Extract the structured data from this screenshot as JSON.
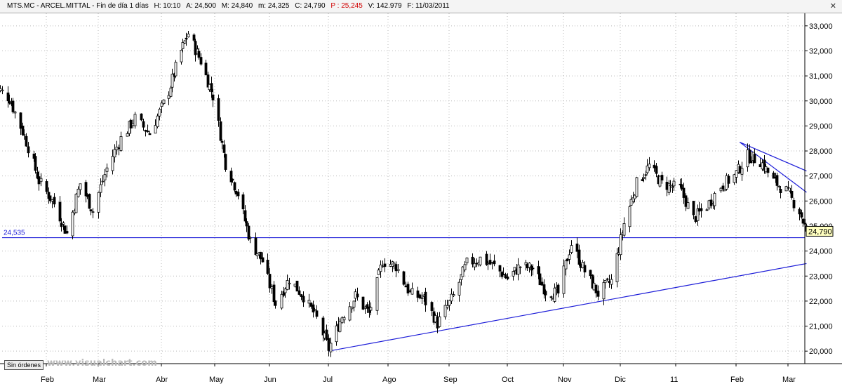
{
  "header": {
    "ticker": "MTS.MC - ARCEL.MITTAL - Fin de día 1 días",
    "high": "H: 10:10",
    "ask": "A: 24,500",
    "max": "M: 24,840",
    "min": "m: 24,325",
    "close": "C: 24,790",
    "price": "P : 25,245",
    "volume": "V: 142.979",
    "date": "F: 11/03/2011",
    "close_icon": "close-icon"
  },
  "colors": {
    "candle": "#000000",
    "trendline": "#1c1cd8",
    "grid": "#b8b8b8",
    "background": "#ffffff",
    "last_price_box": "#ffffc0"
  },
  "chart_data": {
    "type": "candlestick",
    "ylim": [
      19500,
      33500
    ],
    "y_ticks": [
      "20,000",
      "21,000",
      "22,000",
      "23,000",
      "24,000",
      "25,000",
      "26,000",
      "27,000",
      "28,000",
      "29,000",
      "30,000",
      "31,000",
      "32,000",
      "33,000"
    ],
    "x_tick_labels": [
      "Feb",
      "Mar",
      "Abr",
      "May",
      "Jun",
      "Jul",
      "Ago",
      "Sep",
      "Oct",
      "Nov",
      "Dic",
      "11",
      "Feb",
      "Mar"
    ],
    "x_tick_dates": [
      "2010-02-01",
      "2010-03-01",
      "2010-04-01",
      "2010-05-01",
      "2010-06-01",
      "2010-07-01",
      "2010-08-01",
      "2010-09-01",
      "2010-10-01",
      "2010-11-01",
      "2010-12-01",
      "2011-01-01",
      "2011-02-01",
      "2011-03-01"
    ],
    "grid": true,
    "support_level": {
      "value": 24535,
      "label": "24,535"
    },
    "last_price": {
      "value": 24790,
      "label": "24,790"
    },
    "trendlines": [
      {
        "from": [
          "2010-07-01",
          20000
        ],
        "to": [
          "2011-03-11",
          23500
        ]
      },
      {
        "from": [
          "2011-02-03",
          28350
        ],
        "to": [
          "2011-03-11",
          27200
        ]
      },
      {
        "from": [
          "2011-02-03",
          28350
        ],
        "to": [
          "2011-03-11",
          26350
        ]
      }
    ],
    "price_path": [
      [
        "2010-01-04",
        30600
      ],
      [
        "2010-01-12",
        30100
      ],
      [
        "2010-01-20",
        28600
      ],
      [
        "2010-01-28",
        26800
      ],
      [
        "2010-02-05",
        25900
      ],
      [
        "2010-02-12",
        24700
      ],
      [
        "2010-02-19",
        26700
      ],
      [
        "2010-02-26",
        25600
      ],
      [
        "2010-03-05",
        27300
      ],
      [
        "2010-03-12",
        28500
      ],
      [
        "2010-03-19",
        29300
      ],
      [
        "2010-03-26",
        28700
      ],
      [
        "2010-04-05",
        30400
      ],
      [
        "2010-04-12",
        32000
      ],
      [
        "2010-04-16",
        32700
      ],
      [
        "2010-04-23",
        31600
      ],
      [
        "2010-04-30",
        30200
      ],
      [
        "2010-05-07",
        27500
      ],
      [
        "2010-05-14",
        26300
      ],
      [
        "2010-05-21",
        24400
      ],
      [
        "2010-05-28",
        23600
      ],
      [
        "2010-06-04",
        21900
      ],
      [
        "2010-06-11",
        22900
      ],
      [
        "2010-06-18",
        22200
      ],
      [
        "2010-06-25",
        21300
      ],
      [
        "2010-07-01",
        20100
      ],
      [
        "2010-07-08",
        21400
      ],
      [
        "2010-07-15",
        22200
      ],
      [
        "2010-07-22",
        21500
      ],
      [
        "2010-07-29",
        23600
      ],
      [
        "2010-08-05",
        23400
      ],
      [
        "2010-08-12",
        22300
      ],
      [
        "2010-08-19",
        22100
      ],
      [
        "2010-08-26",
        21100
      ],
      [
        "2010-09-03",
        22200
      ],
      [
        "2010-09-10",
        23500
      ],
      [
        "2010-09-17",
        23700
      ],
      [
        "2010-09-24",
        23400
      ],
      [
        "2010-10-01",
        22900
      ],
      [
        "2010-10-08",
        23400
      ],
      [
        "2010-10-15",
        23300
      ],
      [
        "2010-10-22",
        22400
      ],
      [
        "2010-10-29",
        22300
      ],
      [
        "2010-11-05",
        24300
      ],
      [
        "2010-11-12",
        23200
      ],
      [
        "2010-11-19",
        22300
      ],
      [
        "2010-11-26",
        22800
      ],
      [
        "2010-12-03",
        25100
      ],
      [
        "2010-12-10",
        26700
      ],
      [
        "2010-12-17",
        27400
      ],
      [
        "2010-12-24",
        26700
      ],
      [
        "2011-01-03",
        26500
      ],
      [
        "2011-01-10",
        25300
      ],
      [
        "2011-01-17",
        25800
      ],
      [
        "2011-01-24",
        26600
      ],
      [
        "2011-01-31",
        27000
      ],
      [
        "2011-02-07",
        27800
      ],
      [
        "2011-02-14",
        27600
      ],
      [
        "2011-02-21",
        26800
      ],
      [
        "2011-02-28",
        26400
      ],
      [
        "2011-03-07",
        25600
      ],
      [
        "2011-03-11",
        24790
      ]
    ]
  },
  "footer": {
    "no_orders_label": "Sin órdenes",
    "watermark": "www.visualchart.com"
  }
}
